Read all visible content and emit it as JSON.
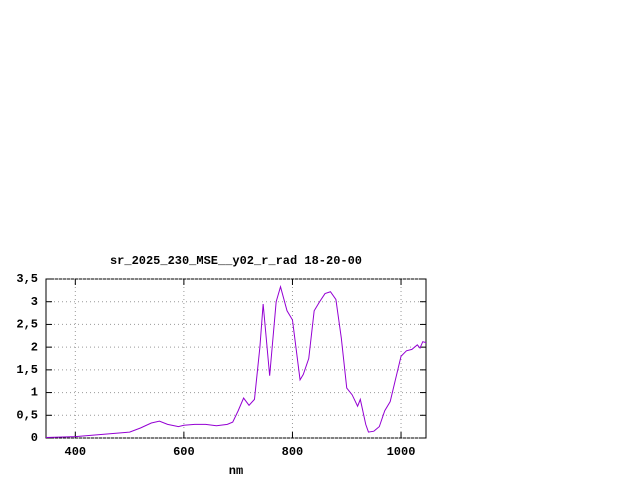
{
  "chart_data": {
    "type": "line",
    "title": "sr_2025_230_MSE__y02_r_rad 18-20-00",
    "x_label": "nm",
    "x": [
      346,
      400,
      450,
      500,
      520,
      540,
      555,
      570,
      590,
      600,
      620,
      640,
      660,
      680,
      690,
      700,
      710,
      720,
      730,
      740,
      746,
      758,
      770,
      778,
      790,
      800,
      814,
      820,
      830,
      840,
      850,
      860,
      870,
      880,
      890,
      900,
      910,
      920,
      925,
      935,
      940,
      950,
      960,
      970,
      980,
      990,
      1000,
      1010,
      1020,
      1030,
      1035,
      1040,
      1046
    ],
    "series": [
      {
        "name": "sr_2025_230_MSE__y02_r_rad",
        "color": "#9400d3",
        "values": [
          0.01,
          0.03,
          0.08,
          0.13,
          0.22,
          0.33,
          0.37,
          0.3,
          0.25,
          0.28,
          0.3,
          0.3,
          0.27,
          0.3,
          0.35,
          0.6,
          0.88,
          0.72,
          0.85,
          2.0,
          2.95,
          1.37,
          3.0,
          3.33,
          2.8,
          2.6,
          1.28,
          1.4,
          1.75,
          2.8,
          3.0,
          3.18,
          3.22,
          3.05,
          2.2,
          1.1,
          0.95,
          0.7,
          0.85,
          0.3,
          0.13,
          0.15,
          0.25,
          0.6,
          0.8,
          1.3,
          1.8,
          1.92,
          1.95,
          2.05,
          1.98,
          2.12,
          2.1
        ]
      }
    ],
    "xlim": [
      346,
      1046
    ],
    "xticks": [
      400,
      600,
      800,
      1000
    ],
    "ylim": [
      0,
      3.5
    ],
    "yticks": [
      0,
      {
        "value": 0.5,
        "label": "0,5"
      },
      1,
      {
        "value": 1.5,
        "label": "1,5"
      },
      2,
      {
        "value": 2.5,
        "label": "2,5"
      },
      3,
      {
        "value": 3.5,
        "label": "3,5"
      }
    ],
    "grid": true
  }
}
